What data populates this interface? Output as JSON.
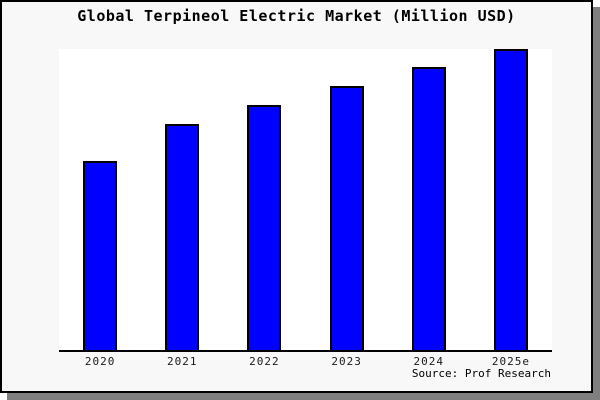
{
  "page": {
    "title": "Global Terpineol Electric Market (Million USD)",
    "source": "Source: Prof Research"
  },
  "chart_data": {
    "type": "bar",
    "title": "Global Terpineol Electric Market (Million USD)",
    "categories": [
      "2020",
      "2021",
      "2022",
      "2023",
      "2024",
      "2025e"
    ],
    "values": [
      62.7,
      75.0,
      81.3,
      87.6,
      94.0,
      100
    ],
    "values_note": "No y-axis scale or gridlines are shown; values are bar heights as percent of the tallest bar (2025e = 100)",
    "xlabel": "",
    "ylabel": "",
    "ylim": [
      0,
      100
    ],
    "grid": false,
    "legend": false,
    "source": "Source: Prof Research",
    "colors": {
      "bar_fill": "#0000ff",
      "bar_edge": "#000000",
      "page_background": "#f8f8f8",
      "plot_background": "#ffffff",
      "axis_line": "#000000",
      "shadow": "#7f7f7f",
      "text": "#000000"
    }
  }
}
